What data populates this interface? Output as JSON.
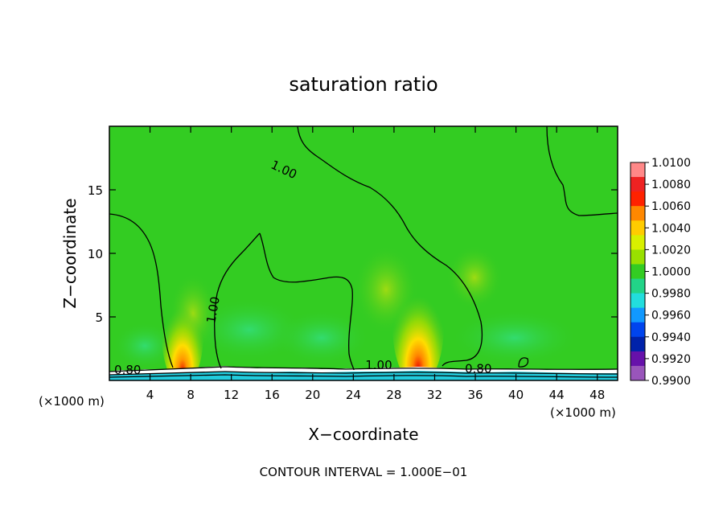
{
  "chart_data": {
    "type": "heatmap",
    "title": "saturation ratio",
    "xlabel": "X−coordinate",
    "ylabel": "Z−coordinate",
    "x_units_left": "(×1000 m)",
    "x_units_right": "(×1000 m)",
    "xlim": [
      0,
      50
    ],
    "ylim": [
      0,
      20
    ],
    "x_ticks": [
      4,
      8,
      12,
      16,
      20,
      24,
      28,
      32,
      36,
      40,
      44,
      48
    ],
    "y_ticks": [
      5,
      10,
      15
    ],
    "x_tick_labels": [
      "4",
      "8",
      "12",
      "16",
      "20",
      "24",
      "28",
      "32",
      "36",
      "40",
      "44",
      "48"
    ],
    "y_tick_labels": [
      "5",
      "10",
      "15"
    ],
    "colorbar": {
      "labels": [
        "1.0100",
        "1.0080",
        "1.0060",
        "1.0040",
        "1.0020",
        "1.0000",
        "0.9980",
        "0.9960",
        "0.9940",
        "0.9920",
        "0.9900"
      ],
      "colors": [
        "#ff8888",
        "#ee2222",
        "#ff2200",
        "#ff8800",
        "#ffcc00",
        "#d8f000",
        "#99e000",
        "#33cc22",
        "#22d488",
        "#22dddd",
        "#1199ff",
        "#0044ee",
        "#0022aa",
        "#6611aa",
        "#9955bb"
      ]
    },
    "contour_labels": [
      {
        "text": "1.00",
        "x": 17.0,
        "y": 16.3
      },
      {
        "text": "1.00",
        "x": 10.6,
        "y": 5.5
      },
      {
        "text": "1.00",
        "x": 26.5,
        "y": 0.9
      },
      {
        "text": "0.80",
        "x": 1.8,
        "y": 0.5
      },
      {
        "text": "0.80",
        "x": 36.3,
        "y": 0.6
      }
    ],
    "background_color": "#33cc22",
    "contour_interval_text": "CONTOUR INTERVAL = 1.000E−01"
  }
}
